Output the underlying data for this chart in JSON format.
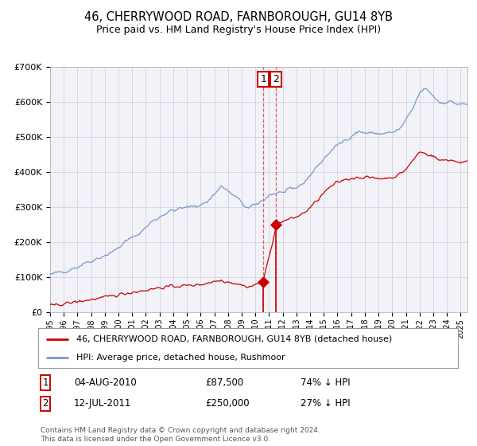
{
  "title": "46, CHERRYWOOD ROAD, FARNBOROUGH, GU14 8YB",
  "subtitle": "Price paid vs. HM Land Registry's House Price Index (HPI)",
  "legend_label_red": "46, CHERRYWOOD ROAD, FARNBOROUGH, GU14 8YB (detached house)",
  "legend_label_blue": "HPI: Average price, detached house, Rushmoor",
  "transaction1_label": "1",
  "transaction2_label": "2",
  "transaction1_date": "04-AUG-2010",
  "transaction2_date": "12-JUL-2011",
  "transaction1_price": 87500,
  "transaction2_price": 250000,
  "transaction1_pct": "74% ↓ HPI",
  "transaction2_pct": "27% ↓ HPI",
  "footer": "Contains HM Land Registry data © Crown copyright and database right 2024.\nThis data is licensed under the Open Government Licence v3.0.",
  "hpi_color": "#7799cc",
  "price_color": "#cc0000",
  "background_color": "#f2f2f8",
  "grid_color": "#ccccdd",
  "ylim_max": 700000,
  "ylim_min": 0,
  "figsize": [
    6.0,
    5.6
  ],
  "dpi": 100,
  "xmin": 1995,
  "xmax": 2025.5
}
